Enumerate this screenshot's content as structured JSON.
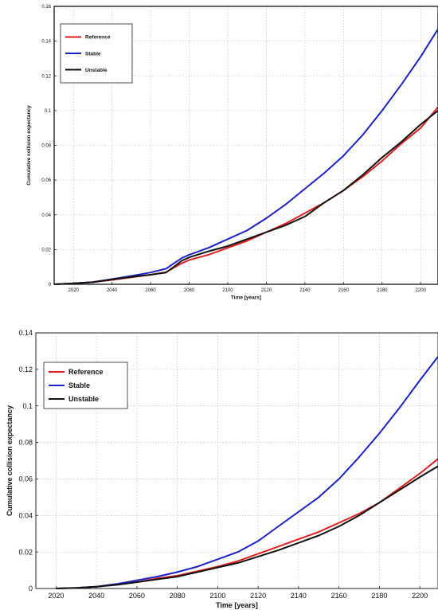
{
  "chart_data": [
    {
      "type": "line",
      "title": "",
      "xlabel": "Time [years]",
      "ylabel": "Cumulative collision expectancy",
      "xlim": [
        2010,
        2209
      ],
      "ylim": [
        0,
        0.16
      ],
      "x_ticks": [
        2020,
        2040,
        2060,
        2080,
        2100,
        2120,
        2140,
        2160,
        2180,
        2200
      ],
      "y_ticks": [
        0,
        0.02,
        0.04,
        0.06,
        0.08,
        0.1,
        0.12,
        0.14,
        0.16
      ],
      "x_tick_labels": [
        "2020",
        "2040",
        "2060",
        "2080",
        "2100",
        "2120",
        "2140",
        "2160",
        "2180",
        "2200"
      ],
      "y_tick_labels": [
        "0",
        "0.02",
        "0.04",
        "0.06",
        "0.08",
        "0.1",
        "0.12",
        "0.14",
        "0.16"
      ],
      "grid": true,
      "legend_position": "top-left",
      "series": [
        {
          "name": "Reference",
          "color": "#e02020",
          "x": [
            2010,
            2020,
            2030,
            2040,
            2050,
            2060,
            2068,
            2072,
            2076,
            2080,
            2090,
            2100,
            2110,
            2120,
            2130,
            2140,
            2150,
            2160,
            2170,
            2180,
            2190,
            2200,
            2209
          ],
          "y": [
            0,
            0.0005,
            0.0012,
            0.0025,
            0.004,
            0.0055,
            0.007,
            0.0095,
            0.012,
            0.014,
            0.017,
            0.021,
            0.025,
            0.03,
            0.035,
            0.041,
            0.047,
            0.054,
            0.062,
            0.071,
            0.081,
            0.09,
            0.102
          ]
        },
        {
          "name": "Stable",
          "color": "#1c22c8",
          "x": [
            2010,
            2020,
            2030,
            2040,
            2050,
            2060,
            2068,
            2072,
            2076,
            2080,
            2090,
            2100,
            2110,
            2120,
            2130,
            2140,
            2150,
            2160,
            2170,
            2180,
            2190,
            2200,
            2209
          ],
          "y": [
            0,
            0.0005,
            0.0013,
            0.003,
            0.0048,
            0.0068,
            0.009,
            0.012,
            0.015,
            0.017,
            0.021,
            0.026,
            0.031,
            0.038,
            0.046,
            0.055,
            0.064,
            0.074,
            0.086,
            0.1,
            0.115,
            0.131,
            0.147
          ]
        },
        {
          "name": "Unstable",
          "color": "#111111",
          "x": [
            2010,
            2020,
            2030,
            2040,
            2050,
            2060,
            2068,
            2072,
            2076,
            2080,
            2090,
            2100,
            2110,
            2120,
            2130,
            2140,
            2150,
            2160,
            2170,
            2180,
            2190,
            2200,
            2209
          ],
          "y": [
            0,
            0.0005,
            0.0012,
            0.0028,
            0.0042,
            0.0055,
            0.0068,
            0.01,
            0.0135,
            0.0155,
            0.019,
            0.022,
            0.026,
            0.03,
            0.034,
            0.039,
            0.047,
            0.054,
            0.063,
            0.073,
            0.082,
            0.092,
            0.1
          ]
        }
      ]
    },
    {
      "type": "line",
      "title": "",
      "xlabel": "Time [years]",
      "ylabel": "Cumulative collision expectancy",
      "xlim": [
        2010,
        2209
      ],
      "ylim": [
        0,
        0.14
      ],
      "x_ticks": [
        2020,
        2040,
        2060,
        2080,
        2100,
        2120,
        2140,
        2160,
        2180,
        2200
      ],
      "y_ticks": [
        0,
        0.02,
        0.04,
        0.06,
        0.08,
        0.1,
        0.12,
        0.14
      ],
      "x_tick_labels": [
        "2020",
        "2040",
        "2060",
        "2080",
        "2100",
        "2120",
        "2140",
        "2160",
        "2180",
        "2200"
      ],
      "y_tick_labels": [
        "0",
        "0.02",
        "0.04",
        "0.06",
        "0.08",
        "0.1",
        "0.12",
        "0.14"
      ],
      "grid": true,
      "legend_position": "top-left",
      "series": [
        {
          "name": "Reference",
          "color": "#e02020",
          "x": [
            2020,
            2030,
            2040,
            2050,
            2060,
            2070,
            2080,
            2090,
            2100,
            2110,
            2120,
            2130,
            2140,
            2150,
            2160,
            2170,
            2180,
            2190,
            2200,
            2209
          ],
          "y": [
            0,
            0.0003,
            0.001,
            0.002,
            0.0035,
            0.0055,
            0.007,
            0.0095,
            0.012,
            0.015,
            0.019,
            0.023,
            0.027,
            0.031,
            0.036,
            0.041,
            0.047,
            0.055,
            0.063,
            0.071
          ]
        },
        {
          "name": "Stable",
          "color": "#1c22c8",
          "x": [
            2020,
            2030,
            2040,
            2050,
            2060,
            2070,
            2080,
            2090,
            2100,
            2110,
            2120,
            2130,
            2140,
            2150,
            2160,
            2170,
            2180,
            2190,
            2200,
            2209
          ],
          "y": [
            0,
            0.0003,
            0.001,
            0.0025,
            0.0045,
            0.0065,
            0.009,
            0.012,
            0.016,
            0.02,
            0.026,
            0.034,
            0.042,
            0.05,
            0.06,
            0.072,
            0.085,
            0.099,
            0.114,
            0.127
          ]
        },
        {
          "name": "Unstable",
          "color": "#111111",
          "x": [
            2020,
            2030,
            2040,
            2050,
            2060,
            2070,
            2080,
            2090,
            2100,
            2110,
            2120,
            2130,
            2140,
            2150,
            2160,
            2170,
            2180,
            2190,
            2200,
            2209
          ],
          "y": [
            0,
            0.0003,
            0.001,
            0.002,
            0.0035,
            0.005,
            0.0065,
            0.009,
            0.0115,
            0.014,
            0.0175,
            0.021,
            0.025,
            0.029,
            0.034,
            0.04,
            0.047,
            0.054,
            0.061,
            0.067
          ]
        }
      ]
    }
  ]
}
